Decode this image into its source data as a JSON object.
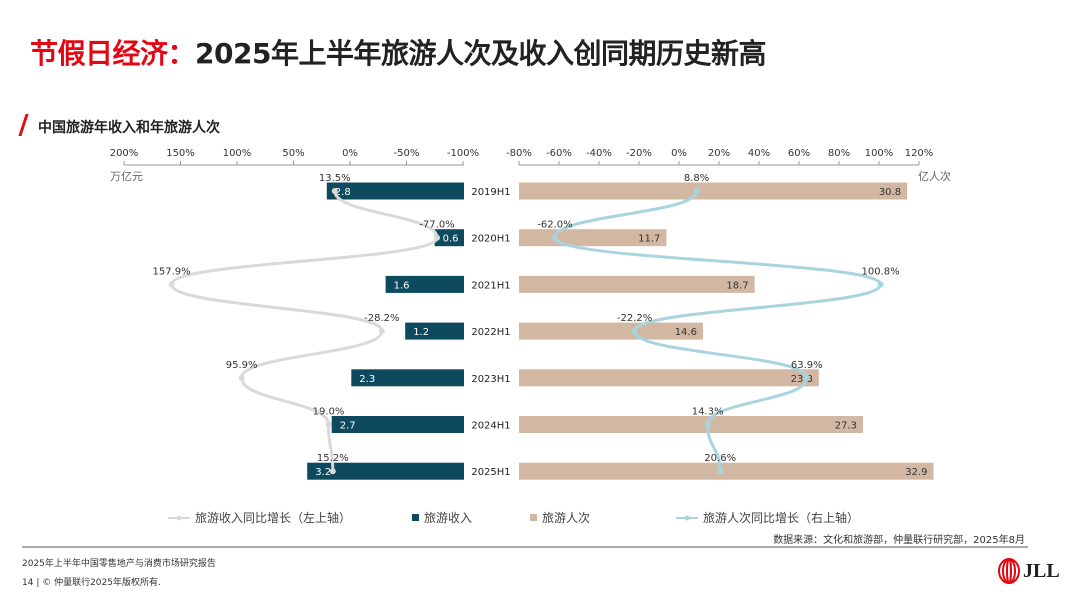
{
  "title": {
    "highlight": "节假日经济：",
    "main": "2025年上半年旅游人次及收入创同期历史新高"
  },
  "subtitle": "中国旅游年收入和年旅游人次",
  "chart_data": {
    "type": "bar",
    "categories": [
      "2019H1",
      "2020H1",
      "2021H1",
      "2022H1",
      "2023H1",
      "2024H1",
      "2025H1"
    ],
    "series": [
      {
        "name": "旅游收入",
        "values": [
          2.8,
          0.6,
          1.6,
          1.2,
          2.3,
          2.7,
          3.2
        ],
        "unit": "万亿元",
        "color": "#0d4a5e"
      },
      {
        "name": "旅游人次",
        "values": [
          30.8,
          11.7,
          18.7,
          14.6,
          23.8,
          27.3,
          32.9
        ],
        "unit": "亿人次",
        "color": "#d2b8a3"
      },
      {
        "name": "旅游收入同比增长（左上轴）",
        "type": "line",
        "values": [
          13.5,
          -77.0,
          157.9,
          -28.2,
          95.9,
          19.0,
          15.2
        ],
        "color": "#d9d9d9"
      },
      {
        "name": "旅游人次同比增长（右上轴）",
        "type": "line",
        "values": [
          8.8,
          -62.0,
          100.8,
          -22.2,
          63.9,
          14.3,
          20.6
        ],
        "color": "#a8d4e0"
      }
    ],
    "left_top_axis": {
      "ticks": [
        "200%",
        "150%",
        "100%",
        "50%",
        "0%",
        "-50%",
        "-100%"
      ],
      "range": [
        200,
        -100
      ],
      "reversed": true
    },
    "right_top_axis": {
      "ticks": [
        "-80%",
        "-60%",
        "-40%",
        "-20%",
        "0%",
        "20%",
        "40%",
        "60%",
        "80%",
        "100%",
        "120%"
      ],
      "range": [
        -80,
        120
      ]
    },
    "left_unit": "万亿元",
    "right_unit": "亿人次",
    "legend_position": "bottom"
  },
  "legend": [
    "旅游收入同比增长（左上轴）",
    "旅游收入",
    "旅游人次",
    "旅游人次同比增长（右上轴）"
  ],
  "source": "数据来源：文化和旅游部，仲量联行研究部，2025年8月",
  "footer": {
    "report": "2025年上半年中国零售地产与消费市场研究报告",
    "page": "14",
    "copyright": "© 仲量联行2025年版权所有.",
    "logo": "JLL"
  }
}
